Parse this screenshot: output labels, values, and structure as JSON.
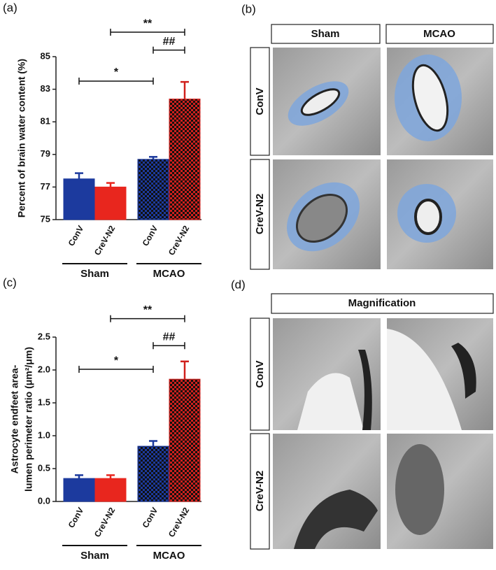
{
  "chart_data": [
    {
      "type": "bar",
      "panel_label": "(a)",
      "ylabel": "Percent of brain water content (%)",
      "categories": [
        "ConV",
        "CreV-N2",
        "ConV",
        "CreV-N2"
      ],
      "groups": [
        "Sham",
        "MCAO"
      ],
      "values": [
        77.5,
        77.0,
        78.7,
        82.4
      ],
      "errors": [
        0.35,
        0.25,
        0.15,
        1.05
      ],
      "colors": [
        "#1c3a9e",
        "#e8261e",
        "#1c3a9e",
        "#d0201c"
      ],
      "fills": [
        "solid",
        "solid",
        "checker",
        "checker"
      ],
      "ylim": [
        75,
        85
      ],
      "yticks": [
        75,
        77,
        79,
        81,
        83,
        85
      ],
      "annotations": [
        {
          "text": "*",
          "from": 0,
          "to": 2,
          "y": 83.5
        },
        {
          "text": "**",
          "from": 1,
          "to": 3,
          "y": 86.5
        },
        {
          "text": "##",
          "from": 2,
          "to": 3,
          "y": 85.4
        }
      ]
    },
    {
      "type": "bar",
      "panel_label": "(c)",
      "ylabel": [
        "Astrocyte endfeet area-",
        "lumen perimeter  ratio (μm²/μm)"
      ],
      "categories": [
        "ConV",
        "CreV-N2",
        "ConV",
        "CreV-N2"
      ],
      "groups": [
        "Sham",
        "MCAO"
      ],
      "values": [
        0.35,
        0.35,
        0.84,
        1.86
      ],
      "errors": [
        0.05,
        0.05,
        0.08,
        0.27
      ],
      "colors": [
        "#1c3a9e",
        "#e8261e",
        "#1c3a9e",
        "#d0201c"
      ],
      "fills": [
        "solid",
        "solid",
        "checker",
        "checker"
      ],
      "ylim": [
        0,
        2.5
      ],
      "yticks": [
        {
          "value": 0,
          "label": "0.0"
        },
        {
          "value": 0.5,
          "label": "0.5"
        },
        {
          "value": 1,
          "label": "1.0"
        },
        {
          "value": 1.5,
          "label": "1.5"
        },
        {
          "value": 2,
          "label": "2.0"
        },
        {
          "value": 2.5,
          "label": "2.5"
        }
      ],
      "annotations": [
        {
          "text": "*",
          "from": 0,
          "to": 2,
          "y": 2.01
        },
        {
          "text": "**",
          "from": 1,
          "to": 3,
          "y": 2.78
        },
        {
          "text": "##",
          "from": 2,
          "to": 3,
          "y": 2.37
        }
      ]
    }
  ],
  "panel_b": {
    "label": "(b)",
    "columns": [
      "Sham",
      "MCAO"
    ],
    "rows": [
      "ConV",
      "CreV-N2"
    ]
  },
  "panel_d": {
    "label": "(d)",
    "header": "Magnification",
    "rows": [
      "ConV",
      "CreV-N2"
    ]
  }
}
